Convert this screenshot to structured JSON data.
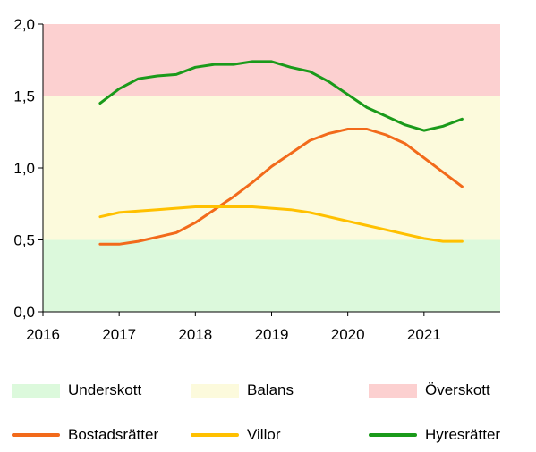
{
  "chart_data": {
    "type": "line",
    "x_ticks": [
      "2016",
      "2017",
      "2018",
      "2019",
      "2020",
      "2021"
    ],
    "xlim": [
      2016.0,
      2022.0
    ],
    "y_ticks": [
      "0,0",
      "0,5",
      "1,0",
      "1,5",
      "2,0"
    ],
    "ylim": [
      0,
      2.0
    ],
    "grid": false,
    "bands": [
      {
        "name": "Underskott",
        "from": 0.0,
        "to": 0.5,
        "color": "#dcf9dc"
      },
      {
        "name": "Balans",
        "from": 0.5,
        "to": 1.5,
        "color": "#fcfadc"
      },
      {
        "name": "Överskott",
        "from": 1.5,
        "to": 2.0,
        "color": "#fcd0d0"
      }
    ],
    "series": [
      {
        "name": "Bostadsrätter",
        "color": "#f26a1b",
        "x": [
          2016.75,
          2017.0,
          2017.25,
          2017.5,
          2017.75,
          2018.0,
          2018.25,
          2018.5,
          2018.75,
          2019.0,
          2019.25,
          2019.5,
          2019.75,
          2020.0,
          2020.25,
          2020.5,
          2020.75,
          2021.0,
          2021.25,
          2021.5
        ],
        "values": [
          0.47,
          0.47,
          0.49,
          0.52,
          0.55,
          0.62,
          0.71,
          0.8,
          0.9,
          1.01,
          1.1,
          1.19,
          1.24,
          1.27,
          1.27,
          1.23,
          1.17,
          1.07,
          0.97,
          0.87
        ]
      },
      {
        "name": "Villor",
        "color": "#ffc000",
        "x": [
          2016.75,
          2017.0,
          2017.25,
          2017.5,
          2017.75,
          2018.0,
          2018.25,
          2018.5,
          2018.75,
          2019.0,
          2019.25,
          2019.5,
          2019.75,
          2020.0,
          2020.25,
          2020.5,
          2020.75,
          2021.0,
          2021.25,
          2021.5
        ],
        "values": [
          0.66,
          0.69,
          0.7,
          0.71,
          0.72,
          0.73,
          0.73,
          0.73,
          0.73,
          0.72,
          0.71,
          0.69,
          0.66,
          0.63,
          0.6,
          0.57,
          0.54,
          0.51,
          0.49,
          0.49
        ]
      },
      {
        "name": "Hyresrätter",
        "color": "#1a9a1a",
        "x": [
          2016.75,
          2017.0,
          2017.25,
          2017.5,
          2017.75,
          2018.0,
          2018.25,
          2018.5,
          2018.75,
          2019.0,
          2019.25,
          2019.5,
          2019.75,
          2020.0,
          2020.25,
          2020.5,
          2020.75,
          2021.0,
          2021.25,
          2021.5
        ],
        "values": [
          1.45,
          1.55,
          1.62,
          1.64,
          1.65,
          1.7,
          1.72,
          1.72,
          1.74,
          1.74,
          1.7,
          1.67,
          1.6,
          1.51,
          1.42,
          1.36,
          1.3,
          1.26,
          1.29,
          1.34
        ]
      }
    ]
  },
  "legend": {
    "bands": [
      {
        "label": "Underskott",
        "color": "#dcf9dc"
      },
      {
        "label": "Balans",
        "color": "#fcfadc"
      },
      {
        "label": "Överskott",
        "color": "#fcd0d0"
      }
    ],
    "lines": [
      {
        "label": "Bostadsrätter",
        "color": "#f26a1b"
      },
      {
        "label": "Villor",
        "color": "#ffc000"
      },
      {
        "label": "Hyresrätter",
        "color": "#1a9a1a"
      }
    ]
  }
}
